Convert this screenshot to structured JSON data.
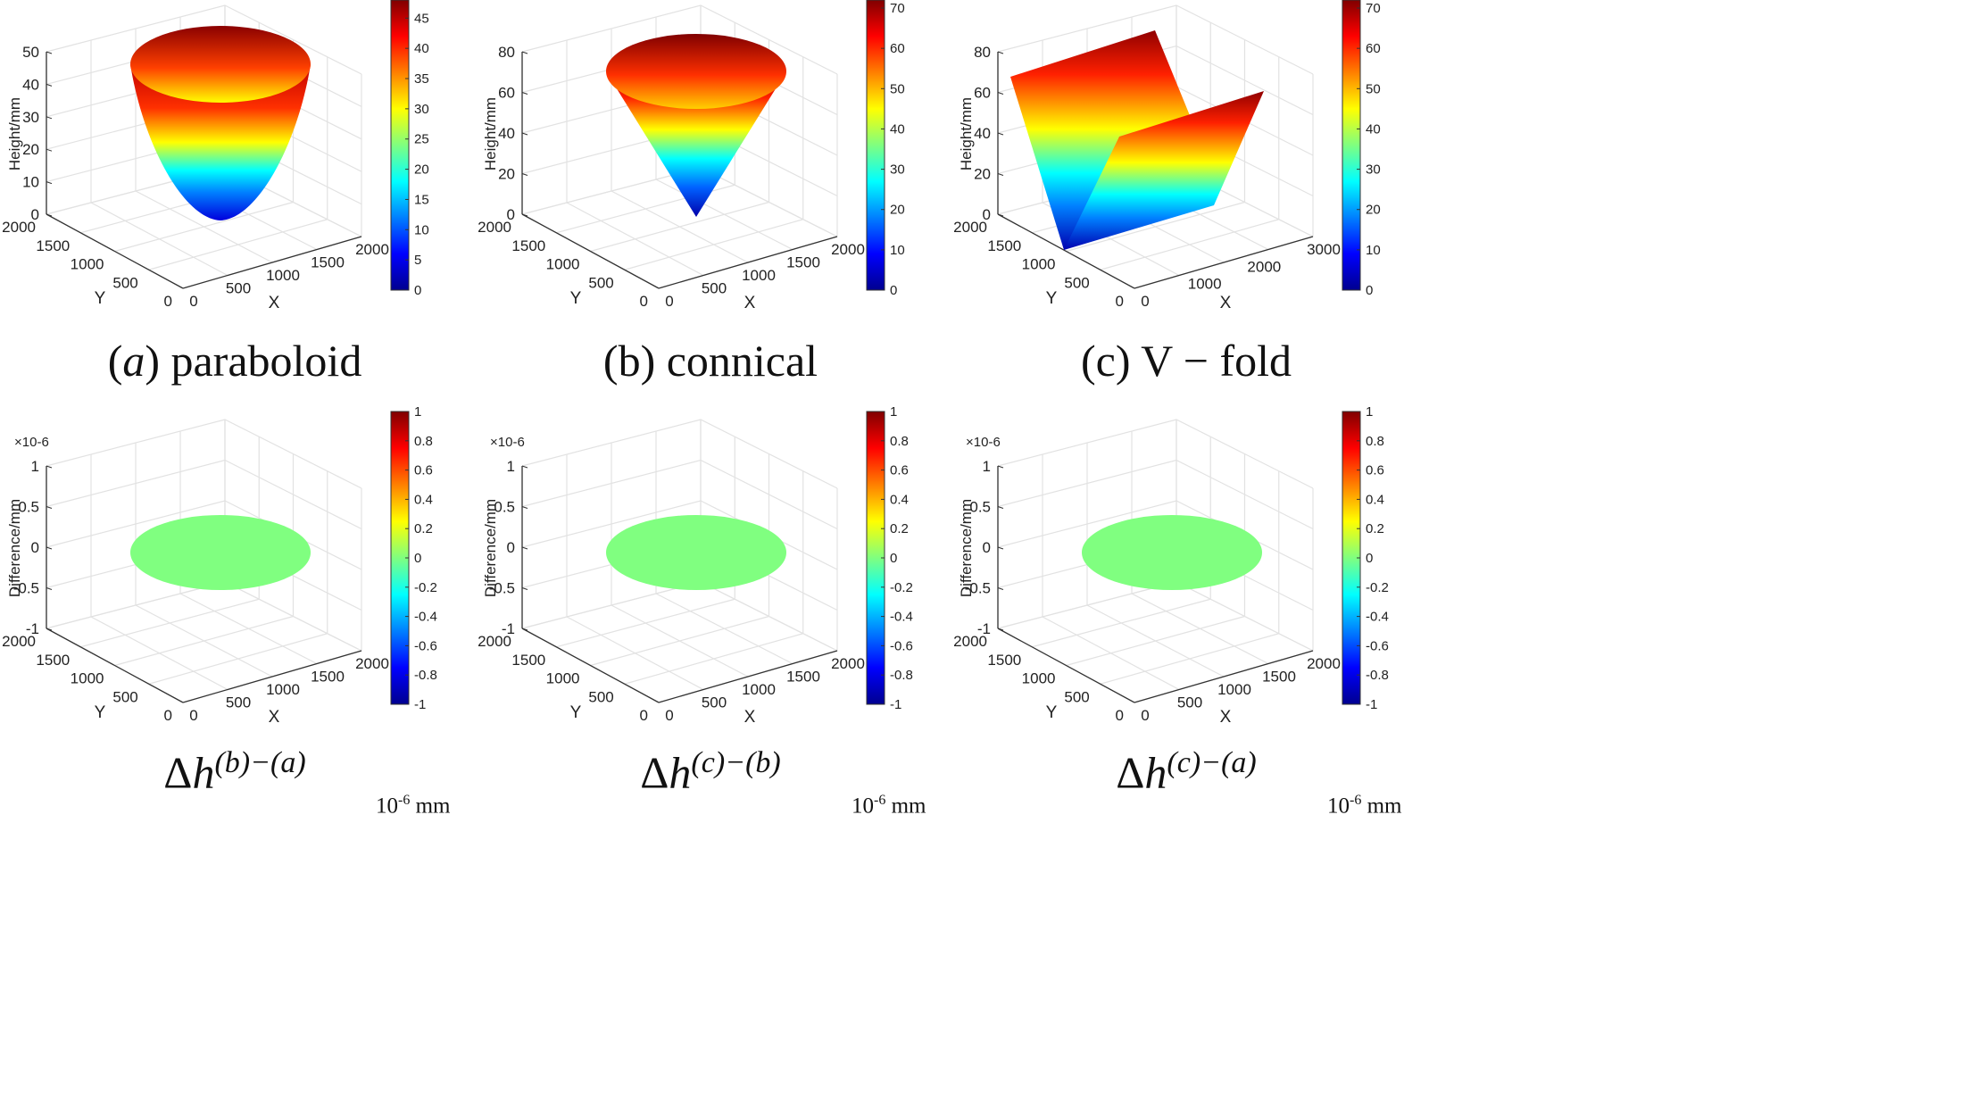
{
  "chart_data": [
    {
      "type": "surface3d",
      "surface": "paraboloid",
      "caption": {
        "prefix": "(",
        "letter": "a",
        "suffix": ") paraboloid"
      },
      "zlabel": "Height/mm",
      "xlabel": "X",
      "ylabel": "Y",
      "zlim": [
        0,
        50
      ],
      "z_ticks": [
        "0",
        "10",
        "20",
        "30",
        "40",
        "50"
      ],
      "x_ticks": [
        "0",
        "500",
        "1000",
        "1500",
        "2000"
      ],
      "y_ticks": [
        "0",
        "500",
        "1000",
        "1500",
        "2000"
      ],
      "z_exponent": "",
      "colorbar": {
        "min": 0,
        "max": 48,
        "ticks": [
          "0",
          "5",
          "10",
          "15",
          "20",
          "25",
          "30",
          "35",
          "40",
          "45"
        ],
        "unit": null
      }
    },
    {
      "type": "surface3d",
      "surface": "cone",
      "caption": {
        "text": "(b) connical"
      },
      "zlabel": "Height/mm",
      "xlabel": "X",
      "ylabel": "Y",
      "zlim": [
        0,
        80
      ],
      "z_ticks": [
        "0",
        "20",
        "40",
        "60",
        "80"
      ],
      "x_ticks": [
        "0",
        "500",
        "1000",
        "1500",
        "2000"
      ],
      "y_ticks": [
        "0",
        "500",
        "1000",
        "1500",
        "2000"
      ],
      "z_exponent": "",
      "colorbar": {
        "min": 0,
        "max": 72,
        "ticks": [
          "0",
          "10",
          "20",
          "30",
          "40",
          "50",
          "60",
          "70"
        ],
        "unit": null
      }
    },
    {
      "type": "surface3d",
      "surface": "vfold",
      "caption": {
        "text": "(c) V − fold"
      },
      "zlabel": "Height/mm",
      "xlabel": "X",
      "ylabel": "Y",
      "zlim": [
        0,
        80
      ],
      "z_ticks": [
        "0",
        "20",
        "40",
        "60",
        "80"
      ],
      "x_ticks": [
        "0",
        "1000",
        "2000",
        "3000"
      ],
      "y_ticks": [
        "0",
        "500",
        "1000",
        "1500",
        "2000"
      ],
      "z_exponent": "",
      "colorbar": {
        "min": 0,
        "max": 72,
        "ticks": [
          "0",
          "10",
          "20",
          "30",
          "40",
          "50",
          "60",
          "70"
        ],
        "unit": null
      }
    },
    {
      "type": "surface3d",
      "surface": "flatdisk",
      "caption": {
        "base": "Δ",
        "letter": "h",
        "sup": "(b)−(a)"
      },
      "zlabel": "Difference/mm",
      "xlabel": "X",
      "ylabel": "Y",
      "zlim": [
        -1,
        1
      ],
      "z_ticks": [
        "-1",
        "-0.5",
        "0",
        "0.5",
        "1"
      ],
      "x_ticks": [
        "0",
        "500",
        "1000",
        "1500",
        "2000"
      ],
      "y_ticks": [
        "0",
        "500",
        "1000",
        "1500",
        "2000"
      ],
      "z_exponent": "×10-6",
      "disk_value": 0,
      "colorbar": {
        "min": -1,
        "max": 1,
        "ticks": [
          "-1",
          "-0.8",
          "-0.6",
          "-0.4",
          "-0.2",
          "0",
          "0.2",
          "0.4",
          "0.6",
          "0.8",
          "1"
        ],
        "unit": {
          "base": "10",
          "exp": "-6",
          "suffix": " mm"
        }
      }
    },
    {
      "type": "surface3d",
      "surface": "flatdisk",
      "caption": {
        "base": "Δ",
        "letter": "h",
        "sup": "(c)−(b)"
      },
      "zlabel": "Difference/mm",
      "xlabel": "X",
      "ylabel": "Y",
      "zlim": [
        -1,
        1
      ],
      "z_ticks": [
        "-1",
        "-0.5",
        "0",
        "0.5",
        "1"
      ],
      "x_ticks": [
        "0",
        "500",
        "1000",
        "1500",
        "2000"
      ],
      "y_ticks": [
        "0",
        "500",
        "1000",
        "1500",
        "2000"
      ],
      "z_exponent": "×10-6",
      "disk_value": 0,
      "colorbar": {
        "min": -1,
        "max": 1,
        "ticks": [
          "-1",
          "-0.8",
          "-0.6",
          "-0.4",
          "-0.2",
          "0",
          "0.2",
          "0.4",
          "0.6",
          "0.8",
          "1"
        ],
        "unit": {
          "base": "10",
          "exp": "-6",
          "suffix": " mm"
        }
      }
    },
    {
      "type": "surface3d",
      "surface": "flatdisk",
      "caption": {
        "base": "Δ",
        "letter": "h",
        "sup": "(c)−(a)"
      },
      "zlabel": "Difference/mm",
      "xlabel": "X",
      "ylabel": "Y",
      "zlim": [
        -1,
        1
      ],
      "z_ticks": [
        "-1",
        "-0.5",
        "0",
        "0.5",
        "1"
      ],
      "x_ticks": [
        "0",
        "500",
        "1000",
        "1500",
        "2000"
      ],
      "y_ticks": [
        "0",
        "500",
        "1000",
        "1500",
        "2000"
      ],
      "z_exponent": "×10-6",
      "disk_value": 0,
      "colorbar": {
        "min": -1,
        "max": 1,
        "ticks": [
          "-1",
          "-0.8",
          "-0.6",
          "-0.4",
          "-0.2",
          "0",
          "0.2",
          "0.4",
          "0.6",
          "0.8",
          "1"
        ],
        "unit": {
          "base": "10",
          "exp": "-6",
          "suffix": " mm"
        }
      }
    }
  ]
}
